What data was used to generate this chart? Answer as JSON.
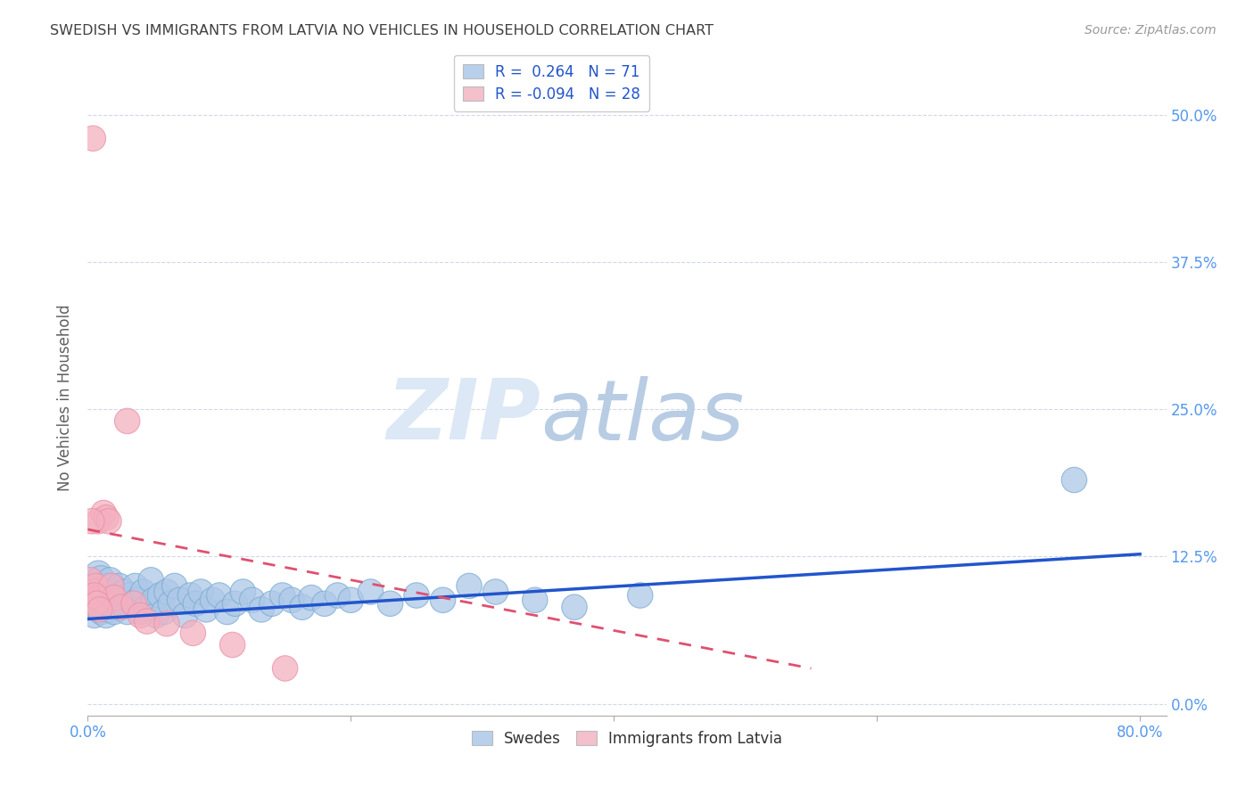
{
  "title": "SWEDISH VS IMMIGRANTS FROM LATVIA NO VEHICLES IN HOUSEHOLD CORRELATION CHART",
  "source": "Source: ZipAtlas.com",
  "ylabel": "No Vehicles in Household",
  "watermark_zip": "ZIP",
  "watermark_atlas": "atlas",
  "xlim": [
    0.0,
    0.82
  ],
  "ylim": [
    -0.01,
    0.53
  ],
  "xticks": [
    0.0,
    0.2,
    0.4,
    0.6,
    0.8
  ],
  "yticks": [
    0.0,
    0.125,
    0.25,
    0.375,
    0.5
  ],
  "ytick_labels": [
    "0.0%",
    "12.5%",
    "25.0%",
    "37.5%",
    "50.0%"
  ],
  "xtick_labels": [
    "0.0%",
    "",
    "",
    "",
    "80.0%"
  ],
  "blue_R": 0.264,
  "blue_N": 71,
  "pink_R": -0.094,
  "pink_N": 28,
  "blue_color": "#adc8e8",
  "pink_color": "#f4b0c0",
  "blue_edge_color": "#7aaad0",
  "pink_edge_color": "#e890a8",
  "blue_line_color": "#2255cc",
  "pink_line_color": "#e05070",
  "grid_color": "#d0d8e8",
  "title_color": "#404040",
  "axis_label_color": "#606060",
  "tick_color_y": "#5599ee",
  "tick_color_x": "#5599ee",
  "legend_box_color_blue": "#b8d0ec",
  "legend_box_color_pink": "#f4c0cc",
  "swedes_x": [
    0.002,
    0.003,
    0.004,
    0.005,
    0.006,
    0.007,
    0.008,
    0.009,
    0.01,
    0.01,
    0.011,
    0.012,
    0.013,
    0.014,
    0.015,
    0.016,
    0.017,
    0.018,
    0.019,
    0.02,
    0.022,
    0.024,
    0.026,
    0.028,
    0.03,
    0.032,
    0.034,
    0.036,
    0.038,
    0.04,
    0.042,
    0.045,
    0.048,
    0.05,
    0.052,
    0.055,
    0.058,
    0.06,
    0.063,
    0.066,
    0.07,
    0.074,
    0.078,
    0.082,
    0.086,
    0.09,
    0.095,
    0.1,
    0.106,
    0.112,
    0.118,
    0.125,
    0.132,
    0.14,
    0.148,
    0.155,
    0.163,
    0.17,
    0.18,
    0.19,
    0.2,
    0.215,
    0.23,
    0.25,
    0.27,
    0.29,
    0.31,
    0.34,
    0.37,
    0.42,
    0.75
  ],
  "swedes_y": [
    0.088,
    0.092,
    0.095,
    0.075,
    0.082,
    0.098,
    0.11,
    0.088,
    0.105,
    0.078,
    0.095,
    0.085,
    0.1,
    0.075,
    0.092,
    0.08,
    0.105,
    0.088,
    0.095,
    0.078,
    0.092,
    0.1,
    0.088,
    0.095,
    0.078,
    0.092,
    0.085,
    0.1,
    0.088,
    0.078,
    0.095,
    0.082,
    0.105,
    0.088,
    0.075,
    0.092,
    0.078,
    0.095,
    0.085,
    0.1,
    0.088,
    0.075,
    0.092,
    0.085,
    0.095,
    0.08,
    0.088,
    0.092,
    0.078,
    0.085,
    0.095,
    0.088,
    0.08,
    0.085,
    0.092,
    0.088,
    0.082,
    0.09,
    0.085,
    0.092,
    0.088,
    0.095,
    0.085,
    0.092,
    0.088,
    0.1,
    0.095,
    0.088,
    0.082,
    0.092,
    0.19
  ],
  "swedes_size": [
    35,
    35,
    35,
    35,
    35,
    35,
    40,
    35,
    45,
    35,
    35,
    35,
    35,
    35,
    35,
    35,
    35,
    35,
    35,
    35,
    35,
    35,
    35,
    35,
    35,
    35,
    35,
    35,
    35,
    35,
    35,
    35,
    35,
    35,
    35,
    35,
    35,
    35,
    35,
    35,
    35,
    35,
    35,
    35,
    35,
    35,
    35,
    35,
    35,
    35,
    35,
    35,
    35,
    35,
    35,
    35,
    35,
    35,
    35,
    35,
    35,
    35,
    35,
    35,
    35,
    35,
    35,
    35,
    35,
    35,
    35
  ],
  "latvia_x": [
    0.001,
    0.002,
    0.003,
    0.004,
    0.005,
    0.006,
    0.007,
    0.008,
    0.009,
    0.01,
    0.012,
    0.014,
    0.016,
    0.018,
    0.02,
    0.025,
    0.03,
    0.035,
    0.04,
    0.045,
    0.06,
    0.08,
    0.11,
    0.15,
    0.003,
    0.005,
    0.007,
    0.009
  ],
  "latvia_y": [
    0.09,
    0.105,
    0.095,
    0.48,
    0.095,
    0.1,
    0.09,
    0.155,
    0.09,
    0.088,
    0.162,
    0.158,
    0.155,
    0.1,
    0.09,
    0.082,
    0.24,
    0.085,
    0.075,
    0.07,
    0.068,
    0.06,
    0.05,
    0.03,
    0.155,
    0.092,
    0.085,
    0.08
  ],
  "latvia_size": [
    35,
    35,
    35,
    35,
    35,
    35,
    35,
    35,
    35,
    35,
    35,
    35,
    35,
    35,
    35,
    35,
    35,
    35,
    35,
    35,
    35,
    35,
    35,
    35,
    35,
    35,
    35,
    35
  ],
  "blue_line_x": [
    0.0,
    0.8
  ],
  "blue_line_y_start": 0.072,
  "blue_line_y_end": 0.127,
  "pink_line_x": [
    0.0,
    0.4
  ],
  "pink_line_y_start": 0.148,
  "pink_line_y_end": 0.03
}
